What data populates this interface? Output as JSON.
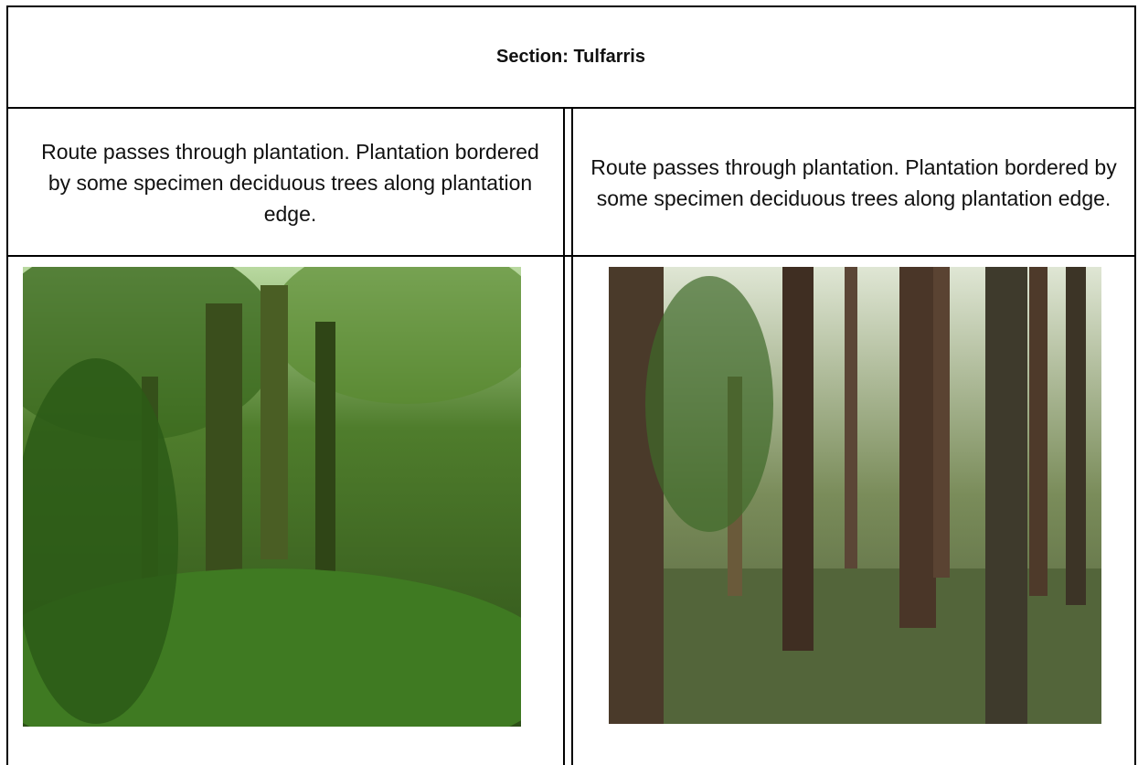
{
  "header": {
    "title": "Section: Tulfarris"
  },
  "table": {
    "rows": [
      [
        "Route passes through plantation. Plantation bordered by some specimen deciduous trees along plantation edge.",
        "Route passes through plantation. Plantation bordered by some specimen deciduous trees along plantation edge."
      ]
    ]
  }
}
